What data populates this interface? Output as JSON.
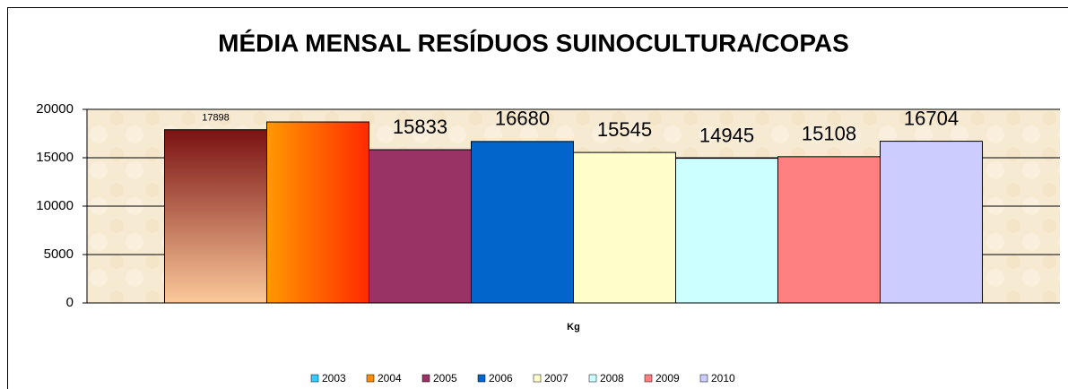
{
  "chart_data": {
    "type": "bar",
    "title": "MÉDIA MENSAL RESÍDUOS SUINOCULTURA/COPAS",
    "categories": [
      "Kg"
    ],
    "series": [
      {
        "name": "2003",
        "color": "#33ccff",
        "gradient": [
          "#7a1212",
          "#fbc99a"
        ],
        "values": [
          17898
        ]
      },
      {
        "name": "2004",
        "color": "#ff8c00",
        "gradient": [
          "#ff9900",
          "#ff2a00"
        ],
        "values": [
          18700
        ],
        "show_label": false
      },
      {
        "name": "2005",
        "color": "#993366",
        "values": [
          15833
        ]
      },
      {
        "name": "2006",
        "color": "#0066cc",
        "values": [
          16680
        ]
      },
      {
        "name": "2007",
        "color": "#ffffcc",
        "values": [
          15545
        ]
      },
      {
        "name": "2008",
        "color": "#ccffff",
        "values": [
          14945
        ]
      },
      {
        "name": "2009",
        "color": "#ff8080",
        "values": [
          15108
        ]
      },
      {
        "name": "2010",
        "color": "#ccccff",
        "values": [
          16704
        ]
      }
    ],
    "ylim": [
      0,
      20000
    ],
    "yticks": [
      0,
      5000,
      10000,
      15000,
      20000
    ],
    "grid": true,
    "legend": "bottom"
  }
}
